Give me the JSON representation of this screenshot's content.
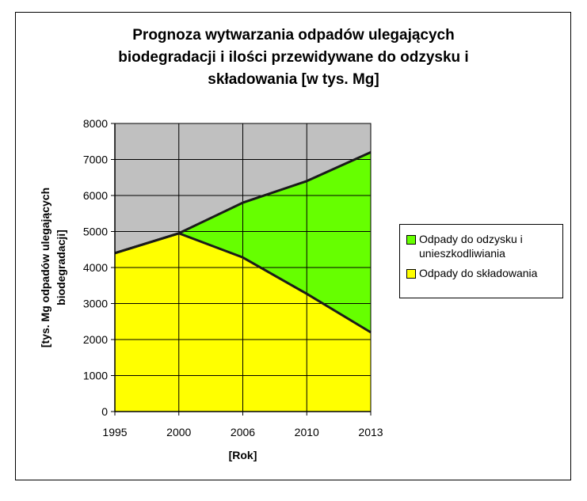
{
  "chart_data": {
    "type": "area",
    "title_lines": [
      "Prognoza wytwarzania odpadów ulegających",
      "biodegradacji i ilości przewidywane do odzysku i",
      "składowania [w tys. Mg]"
    ],
    "xlabel": "[Rok]",
    "ylabel_lines": [
      "[tys. Mg odpadów ulegających",
      "biodegradacji]"
    ],
    "categories": [
      "1995",
      "2000",
      "2006",
      "2010",
      "2013"
    ],
    "ylim": [
      0,
      8000
    ],
    "yticks": [
      "0",
      "1000",
      "2000",
      "3000",
      "4000",
      "5000",
      "6000",
      "7000",
      "8000"
    ],
    "stacked": true,
    "grid": true,
    "legend_position": "right",
    "plot_background": "#c0c0c0",
    "series": [
      {
        "name": "Odpady do składowania",
        "values": [
          4400,
          4950,
          4280,
          3270,
          2200
        ],
        "color": "#ffff00"
      },
      {
        "name": "Odpady do odzysku i unieszkodliwiania",
        "values": [
          0,
          0,
          1520,
          3130,
          5000
        ],
        "color": "#66ff00"
      }
    ],
    "legend": [
      {
        "label": "Odpady do odzysku i unieszkodliwiania",
        "color": "#66ff00"
      },
      {
        "label": "Odpady do składowania",
        "color": "#ffff00"
      }
    ]
  }
}
